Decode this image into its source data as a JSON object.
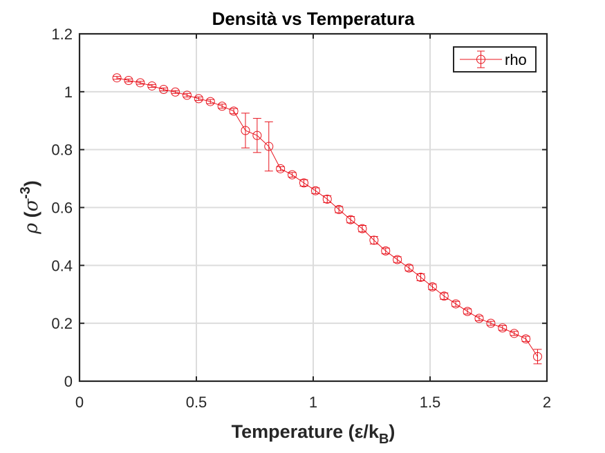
{
  "chart_data": {
    "type": "line",
    "title": "Densità vs Temperatura",
    "xlabel": "Temperature (ε/k",
    "xlabel_sub": "B",
    "xlabel_close": ")",
    "ylabel_symbol": "ρ",
    "ylabel_open": " (",
    "ylabel_sigma": "σ",
    "ylabel_exp": "-3",
    "ylabel_close": ")",
    "xlim": [
      0,
      2
    ],
    "ylim": [
      0,
      1.2
    ],
    "xticks": [
      0,
      0.5,
      1,
      1.5,
      2
    ],
    "xtick_labels": [
      "0",
      "0.5",
      "1",
      "1.5",
      "2"
    ],
    "yticks": [
      0,
      0.2,
      0.4,
      0.6,
      0.8,
      1,
      1.2
    ],
    "ytick_labels": [
      "0",
      "0.2",
      "0.4",
      "0.6",
      "0.8",
      "1",
      "1.2"
    ],
    "grid": true,
    "legend_position": "top-right",
    "series": [
      {
        "name": "rho",
        "color": "#e8141e",
        "marker": "circle",
        "errorbars": true,
        "x": [
          0.16,
          0.21,
          0.26,
          0.31,
          0.36,
          0.41,
          0.46,
          0.51,
          0.56,
          0.61,
          0.66,
          0.71,
          0.76,
          0.81,
          0.86,
          0.91,
          0.96,
          1.01,
          1.06,
          1.11,
          1.16,
          1.21,
          1.26,
          1.31,
          1.36,
          1.41,
          1.46,
          1.51,
          1.56,
          1.61,
          1.66,
          1.71,
          1.76,
          1.81,
          1.86,
          1.91,
          1.96
        ],
        "y": [
          1.048,
          1.039,
          1.031,
          1.02,
          1.008,
          0.999,
          0.988,
          0.976,
          0.966,
          0.95,
          0.933,
          0.866,
          0.849,
          0.811,
          0.734,
          0.713,
          0.685,
          0.658,
          0.629,
          0.593,
          0.558,
          0.527,
          0.487,
          0.45,
          0.42,
          0.391,
          0.359,
          0.326,
          0.294,
          0.267,
          0.241,
          0.217,
          0.2,
          0.184,
          0.165,
          0.146,
          0.085
        ],
        "err": [
          0.005,
          0.005,
          0.005,
          0.005,
          0.005,
          0.005,
          0.006,
          0.006,
          0.007,
          0.007,
          0.009,
          0.06,
          0.059,
          0.085,
          0.007,
          0.008,
          0.011,
          0.01,
          0.012,
          0.011,
          0.011,
          0.011,
          0.013,
          0.01,
          0.01,
          0.01,
          0.012,
          0.01,
          0.011,
          0.009,
          0.009,
          0.008,
          0.007,
          0.008,
          0.007,
          0.009,
          0.025
        ]
      }
    ]
  }
}
